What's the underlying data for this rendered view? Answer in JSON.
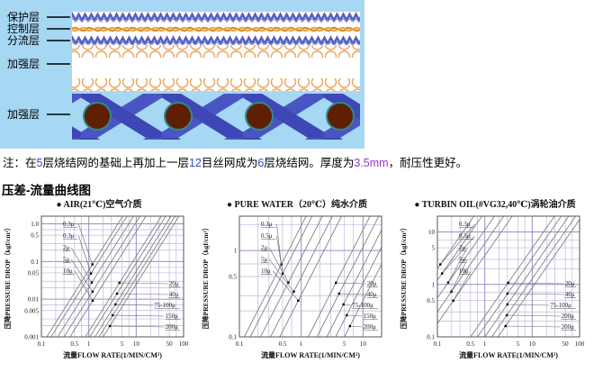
{
  "diagram": {
    "bg_color": "#a6d7f3",
    "mesh_blue": "#5560bd",
    "mesh_orange": "#dd8f33",
    "weave_blue": "#4a55c4",
    "wire_brown": "#5e1f04",
    "layers": [
      {
        "label": "保护层"
      },
      {
        "label": "控制层"
      },
      {
        "label": "分流层"
      },
      {
        "label": "加强层"
      },
      {
        "label": "加强层"
      }
    ]
  },
  "note": {
    "parts": [
      {
        "text": "注：在",
        "color": "#000000"
      },
      {
        "text": "5",
        "color": "#3347cc"
      },
      {
        "text": "层烧结网的基础上再加上一层",
        "color": "#000000"
      },
      {
        "text": "12",
        "color": "#3347cc"
      },
      {
        "text": "目丝网成为",
        "color": "#000000"
      },
      {
        "text": "6",
        "color": "#3347cc"
      },
      {
        "text": "层烧结网。厚度为",
        "color": "#000000"
      },
      {
        "text": "3.5mm",
        "color": "#9933cc"
      },
      {
        "text": "，耐压性更好。",
        "color": "#000000"
      }
    ]
  },
  "section_heading": "压差-流量曲线图",
  "chart_colors": {
    "grid_major": "#9191c9",
    "grid_minor": "#b9b9e2",
    "series_line": "#828282",
    "border": "#555555"
  },
  "chart_data": [
    {
      "type": "line",
      "title": "● AIR(21℃)空气介质",
      "xlabel": "流量FLOW RATE(1/MIN/CM²)",
      "ylabel": "压降PRESSURE DROP（kgf/cm²）",
      "x_scale": "log",
      "y_scale": "log",
      "xlim": [
        0.1,
        100
      ],
      "ylim": [
        0.001,
        1.6
      ],
      "x_ticks": [
        {
          "v": 0.1,
          "label": "0.1"
        },
        {
          "v": 0.5,
          "label": "0.5"
        },
        {
          "v": 1,
          "label": "1"
        },
        {
          "v": 5,
          "label": "5"
        },
        {
          "v": 10,
          "label": "10"
        },
        {
          "v": 50,
          "label": "50"
        },
        {
          "v": 100,
          "label": "100"
        }
      ],
      "y_ticks": [
        {
          "v": 1.0,
          "label": "1.0"
        },
        {
          "v": 0.5,
          "label": "0.5"
        },
        {
          "v": 0.1,
          "label": "0.1"
        },
        {
          "v": 0.05,
          "label": "0.05"
        },
        {
          "v": 0.01,
          "label": "0.01"
        },
        {
          "v": 0.005,
          "label": "0.005"
        },
        {
          "v": 0.001,
          "label": "0.001"
        }
      ],
      "series": [
        {
          "name": "0.3μ",
          "points": [
            [
              0.13,
              0.001
            ],
            [
              5.2,
              1.6
            ]
          ]
        },
        {
          "name": "0.3μ",
          "points": [
            [
              0.16,
              0.001
            ],
            [
              6.4,
              1.6
            ]
          ]
        },
        {
          "name": "2μ",
          "points": [
            [
              0.22,
              0.001
            ],
            [
              8.8,
              1.6
            ]
          ]
        },
        {
          "name": "5μ",
          "points": [
            [
              0.3,
              0.001
            ],
            [
              12,
              1.6
            ]
          ]
        },
        {
          "name": "10μ",
          "points": [
            [
              0.4,
              0.001
            ],
            [
              16,
              1.6
            ]
          ]
        },
        {
          "name": "20μ",
          "points": [
            [
              0.85,
              0.001
            ],
            [
              34,
              1.6
            ]
          ]
        },
        {
          "name": "40μ",
          "points": [
            [
              1.05,
              0.001
            ],
            [
              42,
              1.6
            ]
          ]
        },
        {
          "name": "75-100μ",
          "points": [
            [
              1.35,
              0.001
            ],
            [
              54,
              1.6
            ]
          ]
        },
        {
          "name": "150μ",
          "points": [
            [
              1.65,
              0.001
            ],
            [
              66,
              1.6
            ]
          ]
        },
        {
          "name": "200μ",
          "points": [
            [
              2.0,
              0.001
            ],
            [
              80,
              1.6
            ]
          ]
        }
      ]
    },
    {
      "type": "line",
      "title": "● PURE WATER（20℃）纯水介质",
      "xlabel": "流量FLOW RATE(1/MIN/CM²)",
      "ylabel": "压降PRESSURE DROP（kgf/cm²）",
      "x_scale": "log",
      "y_scale": "log",
      "xlim": [
        0.1,
        20
      ],
      "ylim": [
        0.1,
        2.5
      ],
      "x_ticks": [
        {
          "v": 0.1,
          "label": "0.1"
        },
        {
          "v": 0.5,
          "label": "0.5"
        },
        {
          "v": 1,
          "label": "1"
        },
        {
          "v": 5,
          "label": "5"
        },
        {
          "v": 10,
          "label": "10"
        }
      ],
      "y_ticks": [
        {
          "v": 1,
          "label": "1"
        },
        {
          "v": 0.5,
          "label": "0.5"
        },
        {
          "v": 0.1,
          "label": "0.1"
        }
      ],
      "series": [
        {
          "name": "0.3μ",
          "points": [
            [
              0.12,
              0.1
            ],
            [
              1.2,
              2.5
            ]
          ]
        },
        {
          "name": "0.5μ",
          "points": [
            [
              0.15,
              0.1
            ],
            [
              1.5,
              2.5
            ]
          ]
        },
        {
          "name": "2μ",
          "points": [
            [
              0.22,
              0.1
            ],
            [
              2.2,
              2.5
            ]
          ]
        },
        {
          "name": "5μ",
          "points": [
            [
              0.32,
              0.1
            ],
            [
              3.2,
              2.5
            ]
          ]
        },
        {
          "name": "10μ",
          "points": [
            [
              0.45,
              0.1
            ],
            [
              4.5,
              2.5
            ]
          ]
        },
        {
          "name": "20μ",
          "points": [
            [
              1.3,
              0.1
            ],
            [
              13,
              2.5
            ]
          ]
        },
        {
          "name": "40μ",
          "points": [
            [
              1.8,
              0.1
            ],
            [
              18,
              2.5
            ]
          ]
        },
        {
          "name": "75-100μ",
          "points": [
            [
              2.6,
              0.1
            ],
            [
              26,
              2.5
            ]
          ]
        },
        {
          "name": "150μ",
          "points": [
            [
              3.6,
              0.1
            ],
            [
              36,
              2.5
            ]
          ]
        },
        {
          "name": "200μ",
          "points": [
            [
              5.0,
              0.1
            ],
            [
              50,
              2.5
            ]
          ]
        }
      ]
    },
    {
      "type": "line",
      "title": "● TURBIN OIL(#VG32,40℃)涡轮油介质",
      "xlabel": "流量FLOW RATE(1/MIN/CM²)",
      "ylabel": "压降PRESSURE DROP（kgf/cm²）",
      "x_scale": "log",
      "y_scale": "log",
      "xlim": [
        0.1,
        100
      ],
      "ylim": [
        0.1,
        20
      ],
      "x_ticks": [
        {
          "v": 0.1,
          "label": "0.1"
        },
        {
          "v": 0.5,
          "label": "0.5"
        },
        {
          "v": 1,
          "label": "1"
        },
        {
          "v": 5,
          "label": "5"
        },
        {
          "v": 10,
          "label": "10"
        },
        {
          "v": 50,
          "label": "50"
        },
        {
          "v": 100,
          "label": "100"
        }
      ],
      "y_ticks": [
        {
          "v": 10,
          "label": "10"
        },
        {
          "v": 5,
          "label": "5"
        },
        {
          "v": 1,
          "label": "1"
        },
        {
          "v": 0.5,
          "label": "0.5"
        },
        {
          "v": 0.1,
          "label": "0.1"
        }
      ],
      "series": [
        {
          "name": "0.3μ",
          "points": [
            [
              0.1,
              2.0
            ],
            [
              0.59,
              20
            ]
          ]
        },
        {
          "name": "0.5μ",
          "points": [
            [
              0.1,
              1.2
            ],
            [
              0.87,
              20
            ]
          ]
        },
        {
          "name": "2μ",
          "points": [
            [
              0.1,
              0.55
            ],
            [
              1.6,
              20
            ]
          ]
        },
        {
          "name": "5μ",
          "points": [
            [
              0.1,
              0.3
            ],
            [
              2.5,
              20
            ]
          ]
        },
        {
          "name": "10μ",
          "points": [
            [
              0.1,
              0.18
            ],
            [
              3.8,
              20
            ]
          ]
        },
        {
          "name": "20μ",
          "points": [
            [
              0.5,
              0.1
            ],
            [
              29.5,
              20
            ]
          ]
        },
        {
          "name": "40μ",
          "points": [
            [
              0.7,
              0.1
            ],
            [
              41,
              20
            ]
          ]
        },
        {
          "name": "75-100μ",
          "points": [
            [
              1.0,
              0.1
            ],
            [
              59,
              20
            ]
          ]
        },
        {
          "name": "200μ",
          "points": [
            [
              1.4,
              0.1
            ],
            [
              83,
              20
            ]
          ]
        },
        {
          "name": "200μ",
          "points": [
            [
              1.9,
              0.1
            ],
            [
              112,
              20
            ]
          ]
        }
      ]
    }
  ]
}
